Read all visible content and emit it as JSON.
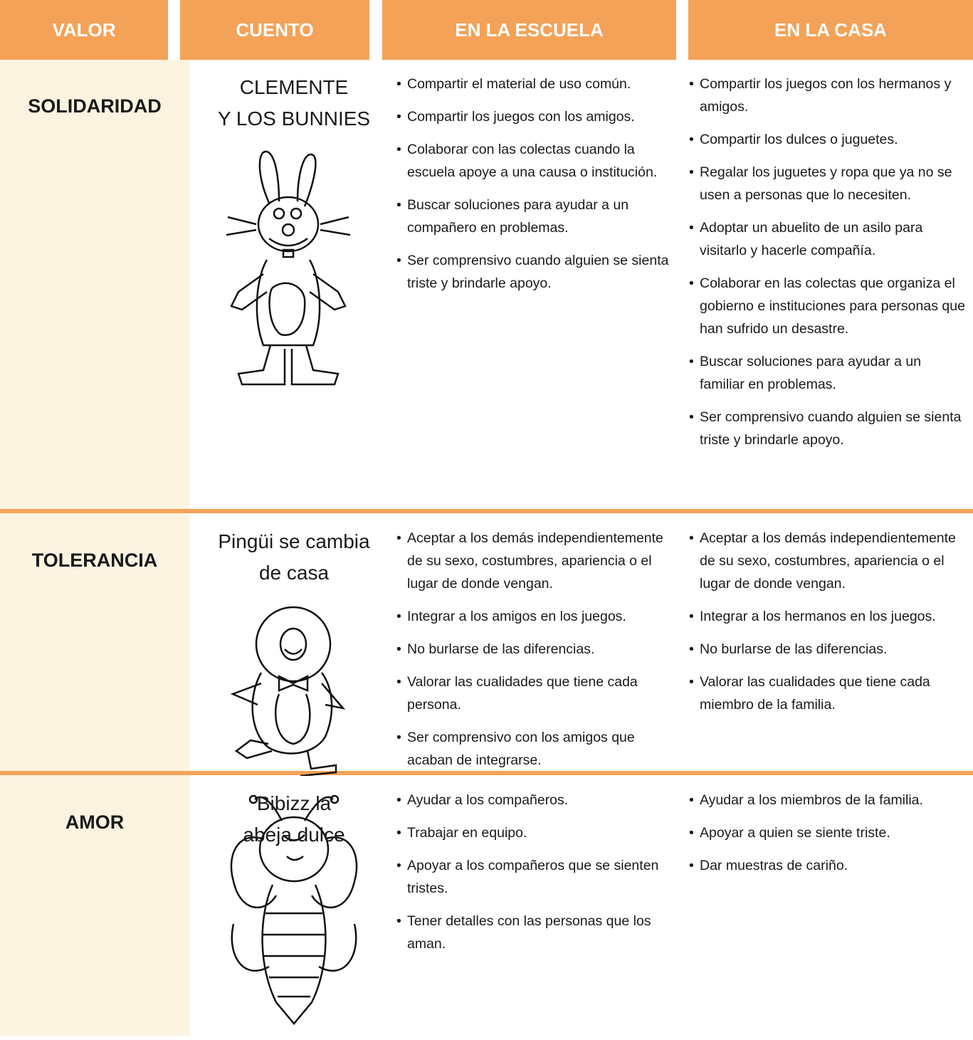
{
  "table": {
    "header": [
      "VALOR",
      "CUENTO",
      "EN LA ESCUELA",
      "EN LA CASA"
    ],
    "rows": [
      {
        "value": "SOLIDARIDAD",
        "story": [
          "CLEMENTE",
          "Y LOS BUNNIES"
        ],
        "school": [
          "Compartir el material de uso común.",
          "Compartir  los juegos con los amigos.",
          "Colaborar con las colectas cuando la escuela apoye a una causa o institución.",
          "Buscar soluciones para ayudar a un compañero en problemas.",
          "Ser comprensivo cuando alguien se sienta triste y brindarle apoyo."
        ],
        "home": [
          "Compartir  los juegos con los hermanos y amigos.",
          "Compartir los dulces o juguetes.",
          "Regalar los juguetes y ropa que ya no se usen a personas que lo necesiten.",
          "Adoptar un abuelito de un asilo para visitarlo y hacerle compañía.",
          "Colaborar en las colectas que organiza el gobierno e instituciones para personas que han sufrido un desastre.",
          "Buscar soluciones para ayudar a un familiar en problemas.",
          "Ser comprensivo cuando alguien se sienta triste y brindarle apoyo."
        ]
      },
      {
        "value": "TOLERANCIA",
        "story": [
          "Pingüi se cambia",
          "de casa"
        ],
        "school": [
          "Aceptar a los demás independientemente de su sexo, costumbres, apariencia o el lugar de donde vengan.",
          "Integrar a los amigos en los juegos.",
          "No burlarse de las diferencias.",
          "Valorar las cualidades que tiene cada persona.",
          "Ser comprensivo con los amigos que acaban de integrarse."
        ],
        "home": [
          "Aceptar a los demás independientemente de su sexo, costumbres, apariencia o el lugar de donde vengan.",
          "Integrar a los hermanos en los juegos.",
          "No burlarse de las diferencias.",
          "Valorar las cualidades que tiene cada miembro de la familia."
        ]
      },
      {
        "value": "AMOR",
        "story": [
          "Bibizz la",
          "abeja dulce"
        ],
        "school": [
          "Ayudar a los compañeros.",
          "Trabajar en equipo.",
          "Apoyar a los compañeros que se sienten tristes.",
          "Tener detalles con las personas que los aman."
        ],
        "home": [
          "Ayudar a los miembros de la familia.",
          "Apoyar a quien se siente triste.",
          "Dar muestras de cariño."
        ]
      }
    ]
  }
}
